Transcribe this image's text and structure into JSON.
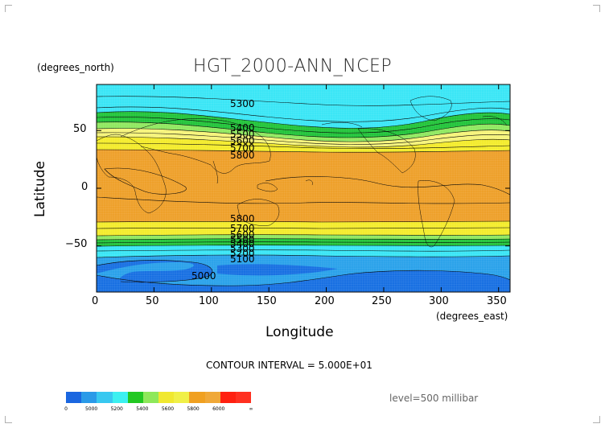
{
  "map": {
    "title": "HGT_2000-ANN_NCEP",
    "y_units": "(degrees_north)",
    "x_units": "(degrees_east)",
    "x_label": "Longitude",
    "y_label": "Latitude",
    "x_ticks": [
      "0",
      "50",
      "100",
      "150",
      "200",
      "250",
      "300",
      "350"
    ],
    "y_ticks": [
      "50",
      "0",
      "−50"
    ],
    "contour_interval_text": "CONTOUR INTERVAL = 5.000E+01",
    "level_text": "level=500 millibar",
    "x_range": [
      0,
      360
    ],
    "y_range": [
      -90,
      90
    ],
    "contour_labels": [
      "5300",
      "5400",
      "5500",
      "5600",
      "5700",
      "5800",
      "5800",
      "5700",
      "5600",
      "5500",
      "5400",
      "5300",
      "5200",
      "5100",
      "5000"
    ]
  },
  "colorbar": {
    "colors": [
      "#1a66e0",
      "#2a9ae8",
      "#38c8f0",
      "#3cf0f0",
      "#22c822",
      "#8ee85a",
      "#f0e830",
      "#f0f048",
      "#f0a020",
      "#f0a838",
      "#ff2010",
      "#ff3020"
    ],
    "labels": [
      "0",
      "5000",
      "5200",
      "5400",
      "5600",
      "5800",
      "6000",
      "∞"
    ]
  },
  "colors": {
    "orange": "#eea02a",
    "yellow": "#f4ec2c",
    "light_yellow": "#f6f47a",
    "light_green": "#90e860",
    "green": "#22c43a",
    "cyan": "#3ae6f6",
    "light_blue": "#2aa2ea",
    "blue": "#1870e2"
  }
}
